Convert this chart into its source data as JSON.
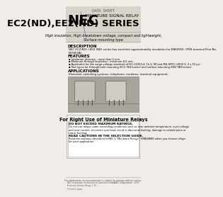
{
  "bg_color": "#f0ede8",
  "header_bg": "#d8d4cc",
  "title_top": "DATA  SHEET",
  "nec_logo": "NEC",
  "series_label": "MINIATURE SIGNAL RELAY",
  "series_title": "EC2(ND),EE2(ND) SERIES",
  "subtitle": "High insulation, High breakdown voltage, compact and lightweight,\nSurface mounting type",
  "description_title": "DESCRIPTION",
  "description_text": "NEC EC2(ND) / EE2 (ND) series has excellent approximately insulation for EN60950, (PVH terminal Fine No.\nE97800A).",
  "features_title": "FEATURES",
  "features": [
    "Insulation distance : more than 2 mm",
    "Minimum through insulation : minimum 8.0 mm",
    "Applicable for the surge-voltage standard of IEC 61000-4, 1k V, MCand MIL-SPEC (2000 V, 2 x 10 μs)",
    "Two types for through-hole mounting (EC2 (ND)series) and surface mounting (EE2 (ND)series)"
  ],
  "applications_title": "APPLICATIONS",
  "applications_text": "Electronic switching systems, telephone, modems, terminal equipment.",
  "caution_title": "For Right Use of Miniature Relays",
  "caution1_title": "DO NOT EXCEED MAXIMUM RATINGS.",
  "caution1_text": "Do not use relays under exceeding conditions such as over ambient temperature, over voltage\nand over current. Incorrect over-load, result in abnormal heating, damage to related parts or\ncause burning.",
  "caution2_title": "READ CAUTIONS IN THE SELECTION GUIDE.",
  "caution2_text": "Read the cautious described in NEC's \"Miniature Relays\" STANDARD when you choose relays\nfor your application.",
  "footer_text": "For information or measurement is subject to change without notice.",
  "footer_company": "© NEC Corporation  1/97",
  "company_addr": "NEC Corporation, Semiconductor Operations Group\nElectronic Devices Group, 1-10\nPrinted in Japan"
}
